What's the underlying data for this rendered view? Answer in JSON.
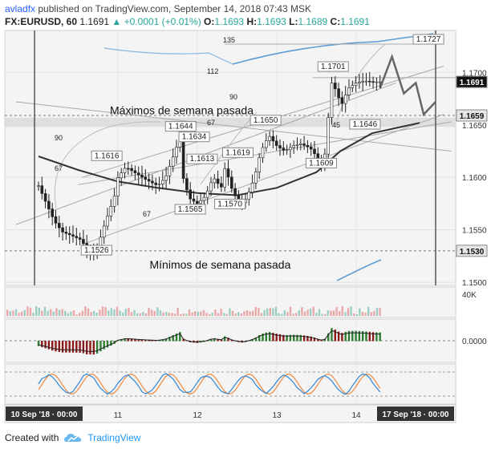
{
  "header": {
    "author": "avladfx",
    "published_text": "published on TradingView.com, September 14, 2018 07:43 MSK",
    "symbol": "FX:EURUSD, 60",
    "last": "1.1691",
    "change": "▲ +0.0001 (+0.01%)",
    "o_label": "O:",
    "o": "1.1693",
    "h_label": "H:",
    "h": "1.1693",
    "l_label": "L:",
    "l": "1.1689",
    "c_label": "C:",
    "c": "1.1691"
  },
  "footer": {
    "created_with": "Created with",
    "brand": "TradingView"
  },
  "chart_data": {
    "type": "candlestick",
    "price_axis": {
      "ylim": [
        1.1497,
        1.174
      ],
      "ticks": [
        "1.1700",
        "1.1650",
        "1.1600",
        "1.1550",
        "1.1500"
      ]
    },
    "price_badges": [
      {
        "label": "1.1691",
        "value": 1.1691,
        "style": "dark"
      },
      {
        "label": "1.1659",
        "value": 1.1659,
        "style": "light"
      },
      {
        "label": "1.1530",
        "value": 1.153,
        "style": "light"
      }
    ],
    "time_axis": {
      "start_badge": "10 Sep '18 · 00:00",
      "end_badge": "17 Sep '18 · 00:00",
      "ticks": [
        {
          "label": "11",
          "day": 1
        },
        {
          "label": "12",
          "day": 2
        },
        {
          "label": "13",
          "day": 3
        },
        {
          "label": "14",
          "day": 4
        }
      ]
    },
    "close_series": [
      [
        0,
        1.1592
      ],
      [
        0.1,
        1.1575
      ],
      [
        0.2,
        1.1558
      ],
      [
        0.3,
        1.1548
      ],
      [
        0.4,
        1.1545
      ],
      [
        0.55,
        1.154
      ],
      [
        0.6,
        1.153
      ],
      [
        0.72,
        1.1526
      ],
      [
        0.8,
        1.1548
      ],
      [
        0.9,
        1.157
      ],
      [
        0.95,
        1.158
      ],
      [
        1.0,
        1.16
      ],
      [
        1.1,
        1.161
      ],
      [
        1.2,
        1.1605
      ],
      [
        1.35,
        1.1598
      ],
      [
        1.5,
        1.1592
      ],
      [
        1.6,
        1.16
      ],
      [
        1.72,
        1.1625
      ],
      [
        1.78,
        1.1638
      ],
      [
        1.82,
        1.16
      ],
      [
        1.9,
        1.158
      ],
      [
        2.0,
        1.1575
      ],
      [
        2.1,
        1.1582
      ],
      [
        2.2,
        1.16
      ],
      [
        2.3,
        1.159
      ],
      [
        2.35,
        1.161
      ],
      [
        2.45,
        1.1585
      ],
      [
        2.55,
        1.1575
      ],
      [
        2.62,
        1.158
      ],
      [
        2.72,
        1.16
      ],
      [
        2.8,
        1.1625
      ],
      [
        2.9,
        1.164
      ],
      [
        3.0,
        1.163
      ],
      [
        3.1,
        1.1625
      ],
      [
        3.2,
        1.163
      ],
      [
        3.3,
        1.1632
      ],
      [
        3.42,
        1.1628
      ],
      [
        3.5,
        1.162
      ],
      [
        3.55,
        1.1612
      ],
      [
        3.62,
        1.1625
      ],
      [
        3.66,
        1.167
      ],
      [
        3.7,
        1.1695
      ],
      [
        3.75,
        1.168
      ],
      [
        3.82,
        1.167
      ],
      [
        3.9,
        1.1685
      ],
      [
        4.0,
        1.169
      ],
      [
        4.1,
        1.1692
      ],
      [
        4.2,
        1.1691
      ],
      [
        4.3,
        1.1691
      ]
    ],
    "moving_average": [
      [
        0,
        1.162
      ],
      [
        0.5,
        1.1607
      ],
      [
        1.0,
        1.1596
      ],
      [
        1.5,
        1.159
      ],
      [
        2.0,
        1.1585
      ],
      [
        2.5,
        1.1583
      ],
      [
        3.0,
        1.159
      ],
      [
        3.5,
        1.1605
      ],
      [
        3.8,
        1.1625
      ],
      [
        4.2,
        1.1642
      ],
      [
        4.8,
        1.1652
      ]
    ],
    "forecast_path": [
      [
        4.3,
        1.1685
      ],
      [
        4.45,
        1.1715
      ],
      [
        4.6,
        1.168
      ],
      [
        4.75,
        1.169
      ],
      [
        4.85,
        1.166
      ],
      [
        5.0,
        1.1672
      ]
    ],
    "price_labels": [
      {
        "text": "1.1701",
        "day": 3.7,
        "price": 1.1701
      },
      {
        "text": "1.1650",
        "day": 2.85,
        "price": 1.165
      },
      {
        "text": "1.1646",
        "day": 4.1,
        "price": 1.1646
      },
      {
        "text": "1.1644",
        "day": 1.78,
        "price": 1.1644
      },
      {
        "text": "1.1634",
        "day": 1.95,
        "price": 1.1634
      },
      {
        "text": "1.1616",
        "day": 0.85,
        "price": 1.1616
      },
      {
        "text": "1.1613",
        "day": 2.05,
        "price": 1.1613
      },
      {
        "text": "1.1619",
        "day": 2.5,
        "price": 1.1619
      },
      {
        "text": "1.1609",
        "day": 3.55,
        "price": 1.1609
      },
      {
        "text": "1.1570",
        "day": 2.4,
        "price": 1.157
      },
      {
        "text": "1.1565",
        "day": 1.9,
        "price": 1.1565
      },
      {
        "text": "1.1526",
        "day": 0.72,
        "price": 1.1526
      },
      {
        "text": "1.1727",
        "day": 4.9,
        "price": 1.1727
      }
    ],
    "fib_labels": [
      "135",
      "112",
      "90",
      "67",
      "45",
      "90",
      "67",
      "67"
    ],
    "annotations": [
      {
        "text": "Máximos de semana pasada",
        "day": 1.0,
        "price": 1.166
      },
      {
        "text": "Mínimos de semana pasada",
        "day": 1.5,
        "price": 1.1513
      }
    ],
    "volume": {
      "label": "40K"
    },
    "macd": {
      "zero_label": "0.0000"
    },
    "colors": {
      "up": "#26a69a",
      "down": "#ef5350",
      "green_hist": "#2e7d32",
      "red_hist": "#8b1a1a",
      "ma": "#333333",
      "envelope": "#5b9bd5",
      "stoch_k": "#2f86d6",
      "stoch_d": "#f0883a"
    }
  }
}
